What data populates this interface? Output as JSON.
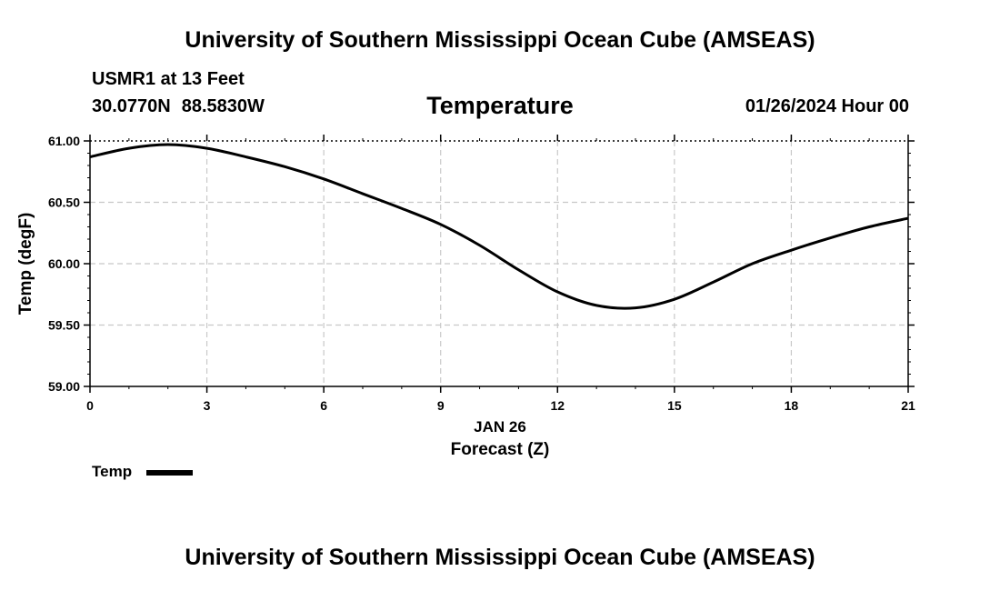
{
  "header": {
    "title": "University of Southern Mississippi Ocean Cube (AMSEAS)",
    "station": "USMR1 at 13 Feet",
    "latitude": "30.0770N",
    "longitude": "88.5830W",
    "run_time": "01/26/2024 Hour 00"
  },
  "footer": {
    "title": "University of Southern Mississippi Ocean Cube (AMSEAS)"
  },
  "colors": {
    "line": "#000000",
    "grid": "#c8c8c8"
  },
  "chart_data": {
    "type": "line",
    "title": "Temperature",
    "xlabel": "Forecast (Z)",
    "xlabel_date": "JAN 26",
    "ylabel": "Temp (degF)",
    "xlim": [
      0,
      21
    ],
    "ylim": [
      59.0,
      61.0
    ],
    "x_ticks": [
      0,
      3,
      6,
      9,
      12,
      15,
      18,
      21
    ],
    "x_tick_labels": [
      "0",
      "3",
      "6",
      "9",
      "12",
      "15",
      "18",
      "21"
    ],
    "y_ticks": [
      59.0,
      59.5,
      60.0,
      60.5,
      61.0
    ],
    "y_tick_labels": [
      "59.00",
      "59.50",
      "60.00",
      "60.50",
      "61.00"
    ],
    "grid": true,
    "legend_position": "bottom-left",
    "series": [
      {
        "name": "Temp",
        "x": [
          0,
          1,
          2,
          3,
          4,
          5,
          6,
          7,
          8,
          9,
          10,
          11,
          12,
          13,
          14,
          15,
          16,
          17,
          18,
          19,
          20,
          21
        ],
        "values": [
          60.87,
          60.94,
          60.97,
          60.94,
          60.87,
          60.79,
          60.69,
          60.57,
          60.45,
          60.32,
          60.15,
          59.95,
          59.77,
          59.66,
          59.64,
          59.71,
          59.85,
          60.0,
          60.11,
          60.21,
          60.3,
          60.37
        ]
      }
    ]
  }
}
